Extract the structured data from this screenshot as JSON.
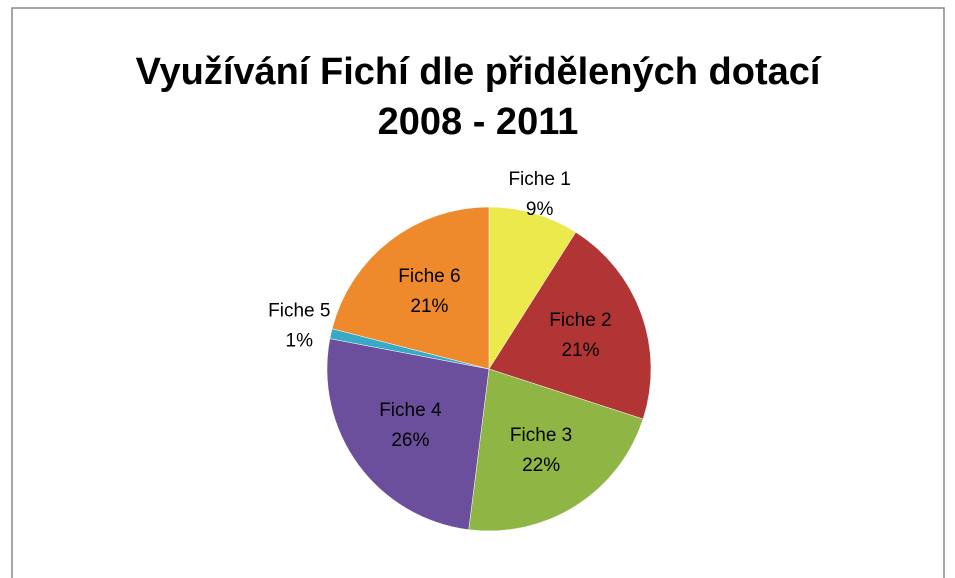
{
  "chart_data": {
    "type": "pie",
    "title": [
      "Využívání Fichí dle přidělených dotací",
      "2008 - 2011"
    ],
    "categories": [
      "Fiche 1",
      "Fiche 2",
      "Fiche 3",
      "Fiche 4",
      "Fiche 5",
      "Fiche 6"
    ],
    "values": [
      9,
      21,
      22,
      26,
      1,
      21
    ],
    "value_labels": [
      "9%",
      "21%",
      "22%",
      "26%",
      "1%",
      "21%"
    ],
    "colors": [
      "#ece94c",
      "#b23535",
      "#8fb545",
      "#6b4f9c",
      "#38a9c6",
      "#ee8a2c"
    ]
  }
}
